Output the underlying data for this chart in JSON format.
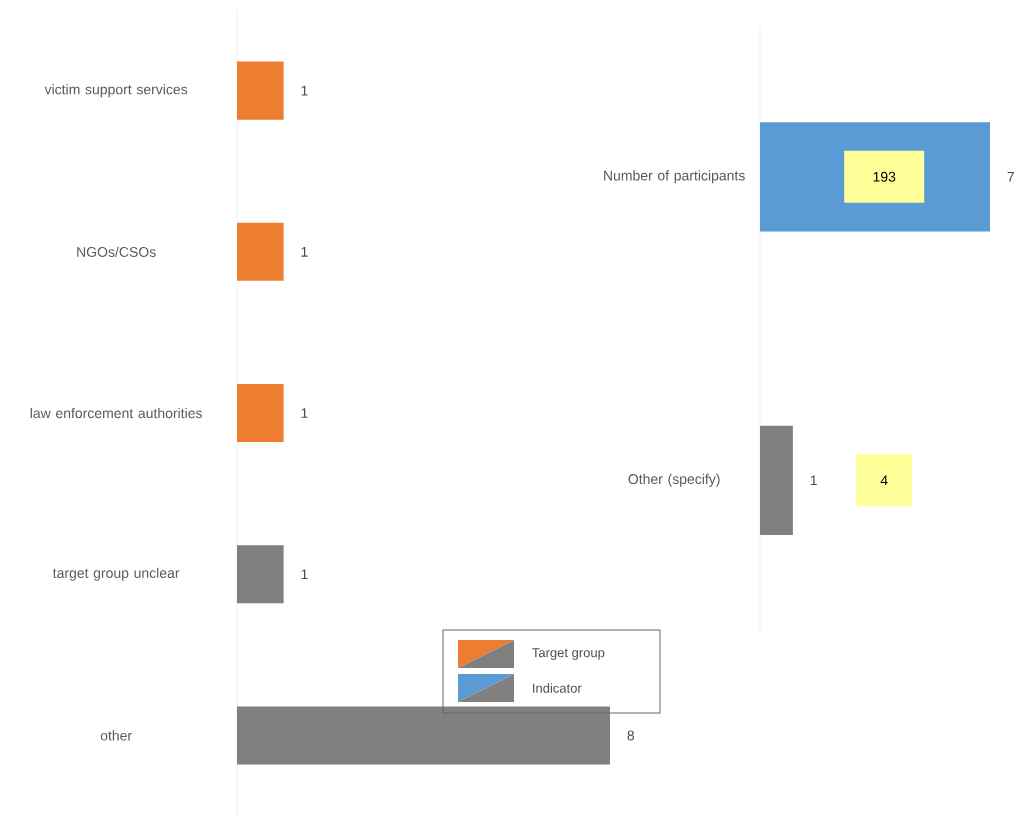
{
  "chart_data": [
    {
      "type": "bar",
      "orientation": "horizontal",
      "categories": [
        "victim support services",
        "NGOs/CSOs",
        "law enforcement authorities",
        "target group unclear",
        "other"
      ],
      "series": [
        {
          "name": "Target group",
          "color": "#ed7d31",
          "values": [
            1,
            1,
            1,
            null,
            null
          ]
        },
        {
          "color": "#808080",
          "values": [
            null,
            null,
            null,
            1,
            8
          ]
        }
      ],
      "data_labels": true,
      "legend": "bottom right"
    },
    {
      "type": "bar",
      "orientation": "horizontal",
      "categories": [
        "Number of participants",
        "Other (specify)"
      ],
      "series": [
        {
          "name": "Indicator",
          "color": "#5b9bd5",
          "values": [
            7,
            null
          ]
        },
        {
          "color": "#808080",
          "values": [
            null,
            1
          ]
        }
      ],
      "annotations": [
        "193",
        "4"
      ],
      "data_labels": true,
      "legend": "bottom left"
    }
  ]
}
